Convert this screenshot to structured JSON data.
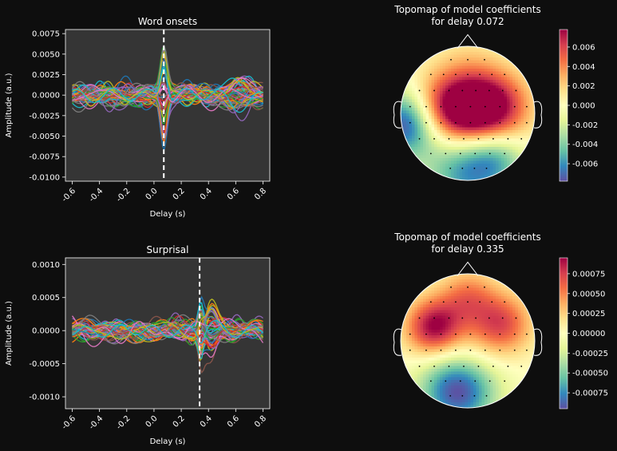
{
  "chart_data": [
    {
      "type": "line",
      "title": "Word onsets",
      "xlabel": "Delay (s)",
      "ylabel": "Amplitude (a.u.)",
      "xlim": [
        -0.65,
        0.85
      ],
      "ylim": [
        -0.0105,
        0.008
      ],
      "xticks": [
        -0.6,
        -0.4,
        -0.2,
        0.0,
        0.2,
        0.4,
        0.6,
        0.8
      ],
      "xtick_labels": [
        "-0.6",
        "-0.4",
        "-0.2",
        "0.0",
        "0.2",
        "0.4",
        "0.6",
        "0.8"
      ],
      "yticks": [
        0.0075,
        0.005,
        0.0025,
        0.0,
        -0.0025,
        -0.005,
        -0.0075,
        -0.01
      ],
      "ytick_labels": [
        "0.0075",
        "0.0050",
        "0.0025",
        "0.0000",
        "-0.0025",
        "-0.0050",
        "-0.0075",
        "-0.0100"
      ],
      "marker_delay": 0.072,
      "n_channels": 60,
      "x_start": -0.6,
      "x_step": 0.0125,
      "n_points": 113,
      "noise_amplitude": 0.0018,
      "peak_center": 0.072,
      "peak_amp": -0.006,
      "peak_width": 0.035,
      "late_center": 0.62,
      "late_amp": 0.0018,
      "late_width": 0.12,
      "colors": [
        "#1f77b4",
        "#ff7f0e",
        "#2ca02c",
        "#d62728",
        "#9467bd",
        "#8c564b",
        "#e377c2",
        "#7f7f7f",
        "#bcbd22",
        "#17becf"
      ]
    },
    {
      "type": "line",
      "title": "Surprisal",
      "xlabel": "Delay (s)",
      "ylabel": "Amplitude (a.u.)",
      "xlim": [
        -0.65,
        0.85
      ],
      "ylim": [
        -0.00118,
        0.0011
      ],
      "xticks": [
        -0.6,
        -0.4,
        -0.2,
        0.0,
        0.2,
        0.4,
        0.6,
        0.8
      ],
      "xtick_labels": [
        "-0.6",
        "-0.4",
        "-0.2",
        "0.0",
        "0.2",
        "0.4",
        "0.6",
        "0.8"
      ],
      "yticks": [
        0.001,
        0.0005,
        0.0,
        -0.0005,
        -0.001
      ],
      "ytick_labels": [
        "0.0010",
        "0.0005",
        "0.0000",
        "-0.0005",
        "-0.0010"
      ],
      "marker_delay": 0.335,
      "n_channels": 60,
      "x_start": -0.6,
      "x_step": 0.0125,
      "n_points": 113,
      "noise_amplitude": 0.00022,
      "peak_center": 0.345,
      "peak_amp": -0.00045,
      "peak_width": 0.03,
      "late_center": 0.42,
      "late_amp": 0.00035,
      "late_width": 0.06,
      "colors": [
        "#1f77b4",
        "#ff7f0e",
        "#2ca02c",
        "#d62728",
        "#9467bd",
        "#8c564b",
        "#e377c2",
        "#7f7f7f",
        "#bcbd22",
        "#17becf"
      ]
    },
    {
      "type": "heatmap",
      "title": "Topomap of model coefficients\nfor delay 0.072",
      "colorbar_ticks": [
        0.006,
        0.004,
        0.002,
        0.0,
        -0.002,
        -0.004,
        -0.006
      ],
      "colorbar_labels": [
        "0.006",
        "0.004",
        "0.002",
        "0.000",
        "-0.002",
        "-0.004",
        "-0.006"
      ],
      "vmin": -0.0078,
      "vmax": 0.0078,
      "colormap": "Spectral_r",
      "blobs": [
        {
          "x": -0.35,
          "y": 0.05,
          "r": 0.38,
          "v": 0.0065
        },
        {
          "x": 0.38,
          "y": 0.08,
          "r": 0.38,
          "v": 0.0078
        },
        {
          "x": 0.0,
          "y": 0.05,
          "r": 0.35,
          "v": 0.004
        },
        {
          "x": -0.9,
          "y": -0.15,
          "r": 0.35,
          "v": -0.0085
        },
        {
          "x": 0.0,
          "y": -0.85,
          "r": 0.45,
          "v": -0.006
        },
        {
          "x": 0.45,
          "y": -0.65,
          "r": 0.3,
          "v": -0.003
        },
        {
          "x": 0.0,
          "y": 0.75,
          "r": 0.35,
          "v": 0.0012
        }
      ]
    },
    {
      "type": "heatmap",
      "title": "Topomap of model coefficients\nfor delay 0.335",
      "colorbar_ticks": [
        0.00075,
        0.0005,
        0.00025,
        0.0,
        -0.00025,
        -0.0005,
        -0.00075
      ],
      "colorbar_labels": [
        "0.00075",
        "0.00050",
        "0.00025",
        "0.00000",
        "-0.00025",
        "-0.00050",
        "-0.00075"
      ],
      "vmin": -0.00095,
      "vmax": 0.00095,
      "colormap": "Spectral_r",
      "blobs": [
        {
          "x": -0.5,
          "y": 0.2,
          "r": 0.3,
          "v": 0.00095
        },
        {
          "x": 0.5,
          "y": 0.25,
          "r": 0.32,
          "v": 0.0007
        },
        {
          "x": 0.0,
          "y": 0.65,
          "r": 0.3,
          "v": 0.0005
        },
        {
          "x": -0.15,
          "y": -0.75,
          "r": 0.4,
          "v": -0.00095
        },
        {
          "x": 0.1,
          "y": -0.15,
          "r": 0.3,
          "v": 0.0001
        }
      ]
    }
  ]
}
